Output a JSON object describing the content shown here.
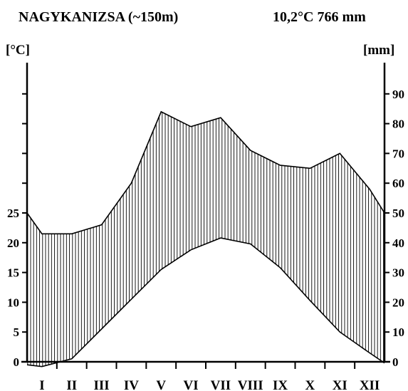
{
  "header": {
    "title": "NAGYKANIZSA (~150m)",
    "summary": "10,2°C   766 mm"
  },
  "colors": {
    "ink": "#000000",
    "background": "#ffffff"
  },
  "chart_data": {
    "type": "line",
    "title": "NAGYKANIZSA (~150m)",
    "categories": [
      "I",
      "II",
      "III",
      "IV",
      "V",
      "VI",
      "VII",
      "VIII",
      "IX",
      "X",
      "XI",
      "XII"
    ],
    "x_unit_labels": {
      "left": "[°C]",
      "right": "[mm]"
    },
    "y_left": {
      "ticks": [
        0,
        5,
        10,
        15,
        20,
        25
      ],
      "lim": [
        0,
        50
      ]
    },
    "y_right": {
      "ticks": [
        0,
        10,
        20,
        30,
        40,
        50,
        60,
        70,
        80,
        90
      ],
      "lim": [
        0,
        100
      ]
    },
    "series": [
      {
        "name": "temperature",
        "axis": "left",
        "boundary_start": -0.5,
        "values": [
          -0.8,
          0.5,
          5.5,
          10.5,
          15.5,
          18.8,
          20.8,
          19.8,
          15.8,
          10.3,
          5.0,
          1.5
        ],
        "boundary_end": -0.2
      },
      {
        "name": "precipitation",
        "axis": "right",
        "boundary_start": 50,
        "values": [
          43,
          43,
          46,
          60,
          84,
          79,
          82,
          71,
          66,
          65,
          70,
          58
        ],
        "boundary_end": 50
      }
    ],
    "fill": "vertical-hatch",
    "grid": false,
    "legend": "none"
  }
}
